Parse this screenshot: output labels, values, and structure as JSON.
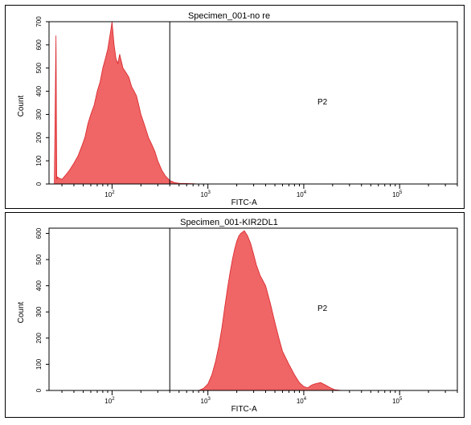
{
  "chart_data": [
    {
      "type": "area",
      "title": "Specimen_001-no re",
      "xlabel": "FITC-A",
      "ylabel": "Count",
      "x_scale": "log",
      "xlim": [
        22,
        400000
      ],
      "ylim": [
        0,
        700
      ],
      "y_ticks": [
        0,
        100,
        200,
        300,
        400,
        500,
        600,
        700
      ],
      "x_ticks": [
        {
          "value": 100,
          "base": "10",
          "exp": "2"
        },
        {
          "value": 1000,
          "base": "10",
          "exp": "3"
        },
        {
          "value": 10000,
          "base": "10",
          "exp": "4"
        },
        {
          "value": 100000,
          "base": "10",
          "exp": "5"
        }
      ],
      "gate": {
        "label": "P2",
        "x_start": 400
      },
      "fill_color": "#f06565",
      "x": [
        25,
        26,
        26.5,
        27,
        28,
        30,
        33,
        36,
        40,
        44,
        48,
        52,
        56,
        60,
        65,
        70,
        75,
        80,
        85,
        90,
        95,
        100,
        105,
        110,
        115,
        120,
        130,
        140,
        150,
        160,
        170,
        180,
        190,
        200,
        220,
        240,
        260,
        280,
        300,
        330,
        360,
        400,
        450,
        500,
        600,
        700,
        800,
        1000,
        1200
      ],
      "values": [
        0,
        640,
        20,
        30,
        25,
        20,
        40,
        60,
        90,
        120,
        160,
        200,
        260,
        300,
        340,
        400,
        440,
        500,
        540,
        580,
        640,
        700,
        600,
        540,
        520,
        560,
        500,
        480,
        460,
        420,
        400,
        380,
        340,
        300,
        250,
        200,
        170,
        140,
        100,
        60,
        35,
        15,
        6,
        3,
        2,
        1,
        0,
        0,
        0
      ]
    },
    {
      "type": "area",
      "title": "Specimen_001-KIR2DL1",
      "xlabel": "FITC-A",
      "ylabel": "Count",
      "x_scale": "log",
      "xlim": [
        22,
        400000
      ],
      "ylim": [
        0,
        620
      ],
      "y_ticks": [
        0,
        100,
        200,
        300,
        400,
        500,
        600
      ],
      "x_ticks": [
        {
          "value": 100,
          "base": "10",
          "exp": "2"
        },
        {
          "value": 1000,
          "base": "10",
          "exp": "3"
        },
        {
          "value": 10000,
          "base": "10",
          "exp": "4"
        },
        {
          "value": 100000,
          "base": "10",
          "exp": "5"
        }
      ],
      "gate": {
        "label": "P2",
        "x_start": 400
      },
      "fill_color": "#f06565",
      "x": [
        800,
        900,
        1000,
        1100,
        1200,
        1300,
        1400,
        1500,
        1600,
        1700,
        1800,
        1900,
        2000,
        2100,
        2200,
        2400,
        2600,
        2800,
        3000,
        3200,
        3500,
        4000,
        4500,
        5000,
        5500,
        6000,
        7000,
        8000,
        9000,
        10000,
        11000,
        12000,
        13000,
        15000,
        17000,
        19000,
        21000,
        25000
      ],
      "values": [
        0,
        8,
        25,
        60,
        110,
        170,
        240,
        320,
        390,
        450,
        500,
        540,
        570,
        590,
        600,
        610,
        590,
        560,
        520,
        480,
        440,
        400,
        330,
        260,
        200,
        150,
        100,
        60,
        30,
        15,
        10,
        20,
        25,
        30,
        20,
        10,
        3,
        0
      ]
    }
  ]
}
